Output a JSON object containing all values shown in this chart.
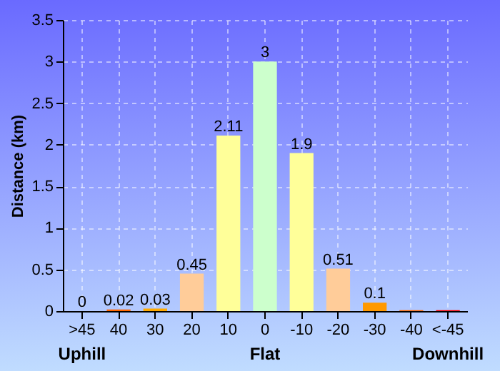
{
  "chart_data": {
    "type": "bar",
    "ylabel": "Distance (km)",
    "categories": [
      ">45",
      "40",
      "30",
      "20",
      "10",
      "0",
      "-10",
      "-20",
      "-30",
      "-40",
      "<-45"
    ],
    "values": [
      0,
      0.02,
      0.03,
      0.45,
      2.11,
      3,
      1.9,
      0.51,
      0.1,
      0.01,
      0.01
    ],
    "value_labels": [
      "0",
      "0.02",
      "0.03",
      "0.45",
      "2.11",
      "3",
      "1.9",
      "0.51",
      "0.1",
      null,
      null
    ],
    "colors": [
      "#ff0000",
      "#ff6600",
      "#ffaa00",
      "#ffcc99",
      "#ffff99",
      "#ccffcc",
      "#ffff99",
      "#ffcc99",
      "#ff9900",
      "#ff6600",
      "#ff0000"
    ],
    "ylim": [
      0,
      3.5
    ],
    "yticks": [
      0,
      0.5,
      1,
      1.5,
      2,
      2.5,
      3,
      3.5
    ],
    "grid": true,
    "annotations": [
      "Uphill",
      "Flat",
      "Downhill"
    ]
  }
}
